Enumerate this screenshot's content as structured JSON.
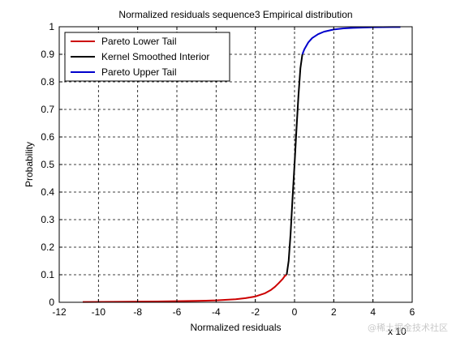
{
  "chart_data": {
    "type": "line",
    "title": "Normalized residuals sequence3 Empirical distribution",
    "xlabel": "Normalized residuals",
    "ylabel": "Probability",
    "x_exponent_label": "x 10",
    "xlim": [
      -12,
      6
    ],
    "ylim": [
      0,
      1
    ],
    "x_ticks": [
      "-12",
      "-10",
      "-8",
      "-6",
      "-4",
      "-2",
      "0",
      "2",
      "4",
      "6"
    ],
    "y_ticks": [
      "0",
      "0.1",
      "0.2",
      "0.3",
      "0.4",
      "0.5",
      "0.6",
      "0.7",
      "0.8",
      "0.9",
      "1"
    ],
    "grid": true,
    "legend_position": "top-left",
    "series": [
      {
        "name": "Pareto Lower Tail",
        "color": "#cc0000",
        "x": [
          -10.8,
          -9,
          -7,
          -5,
          -4,
          -3,
          -2.5,
          -2,
          -1.5,
          -1.2,
          -1.0,
          -0.8,
          -0.6,
          -0.5,
          -0.4
        ],
        "y": [
          0.001,
          0.002,
          0.003,
          0.005,
          0.007,
          0.011,
          0.015,
          0.021,
          0.033,
          0.045,
          0.056,
          0.07,
          0.085,
          0.095,
          0.1
        ]
      },
      {
        "name": "Kernel Smoothed Interior",
        "color": "#000000",
        "x": [
          -0.4,
          -0.3,
          -0.2,
          -0.1,
          0.0,
          0.1,
          0.2,
          0.3,
          0.4
        ],
        "y": [
          0.1,
          0.15,
          0.25,
          0.38,
          0.5,
          0.63,
          0.75,
          0.85,
          0.9
        ]
      },
      {
        "name": "Pareto Upper Tail",
        "color": "#0000cc",
        "x": [
          0.4,
          0.5,
          0.7,
          0.9,
          1.2,
          1.5,
          2.0,
          2.5,
          3.0,
          4.0,
          5.0,
          5.4
        ],
        "y": [
          0.9,
          0.918,
          0.943,
          0.959,
          0.973,
          0.982,
          0.99,
          0.994,
          0.996,
          0.998,
          0.999,
          0.999
        ]
      }
    ]
  },
  "watermark": "@稀土掘金技术社区"
}
